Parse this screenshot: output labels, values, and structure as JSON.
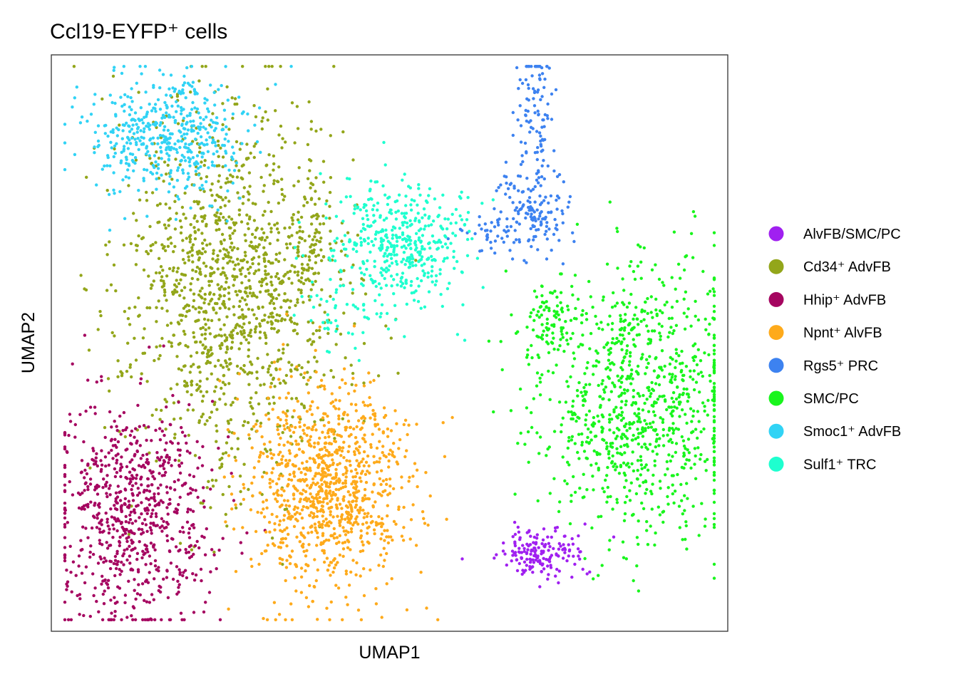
{
  "chart_data": {
    "type": "scatter",
    "title": "Ccl19-EYFP⁺ cells",
    "xlabel": "UMAP1",
    "ylabel": "UMAP2",
    "axis_ticks": false,
    "grid": false,
    "legend_position": "right",
    "xlim": [
      0,
      100
    ],
    "ylim": [
      0,
      100
    ],
    "series": [
      {
        "name": "AlvFB/SMC/PC",
        "color": "#A020F0",
        "clusters": [
          {
            "center": [
              72.5,
              13.5
            ],
            "spread": [
              3.0,
              2.3
            ],
            "n": 170
          }
        ]
      },
      {
        "name": "Cd34⁺ AdvFB",
        "color": "#93A61A",
        "clusters": [
          {
            "center": [
              27.0,
              60.0
            ],
            "spread": [
              8.0,
              16.0
            ],
            "n": 1300
          },
          {
            "center": [
              38.5,
              67.0
            ],
            "spread": [
              2.2,
              3.5
            ],
            "n": 60
          }
        ]
      },
      {
        "name": "Hhip⁺ AdvFB",
        "color": "#A50560",
        "clusters": [
          {
            "center": [
              12.0,
              20.0
            ],
            "spread": [
              6.0,
              10.0
            ],
            "n": 750
          }
        ]
      },
      {
        "name": "Npnt⁺ AlvFB",
        "color": "#FEAA1B",
        "clusters": [
          {
            "center": [
              41.0,
              25.0
            ],
            "spread": [
              6.0,
              9.0
            ],
            "n": 1000
          }
        ]
      },
      {
        "name": "Rgs5⁺ PRC",
        "color": "#3D82F0",
        "clusters": [
          {
            "center": [
              71.5,
              89.0
            ],
            "spread": [
              1.5,
              7.0
            ],
            "n": 110
          },
          {
            "center": [
              71.0,
              73.0
            ],
            "spread": [
              3.0,
              4.0
            ],
            "n": 140
          },
          {
            "center": [
              65.0,
              69.0
            ],
            "spread": [
              2.5,
              1.5
            ],
            "n": 35
          }
        ]
      },
      {
        "name": "SMC/PC",
        "color": "#19F51D",
        "clusters": [
          {
            "center": [
              87.0,
              40.0
            ],
            "spread": [
              7.5,
              12.0
            ],
            "n": 950
          },
          {
            "center": [
              74.0,
              53.5
            ],
            "spread": [
              3.0,
              3.0
            ],
            "n": 90
          }
        ]
      },
      {
        "name": "Smoc1⁺ AdvFB",
        "color": "#31D3F5",
        "clusters": [
          {
            "center": [
              17.5,
              86.0
            ],
            "spread": [
              5.5,
              5.5
            ],
            "n": 480
          }
        ]
      },
      {
        "name": "Sulf1⁺ TRC",
        "color": "#1EFFCF",
        "clusters": [
          {
            "center": [
              51.5,
              67.0
            ],
            "spread": [
              5.0,
              5.5
            ],
            "n": 450
          },
          {
            "center": [
              43.0,
              55.0
            ],
            "spread": [
              3.0,
              3.0
            ],
            "n": 40
          }
        ]
      }
    ]
  }
}
